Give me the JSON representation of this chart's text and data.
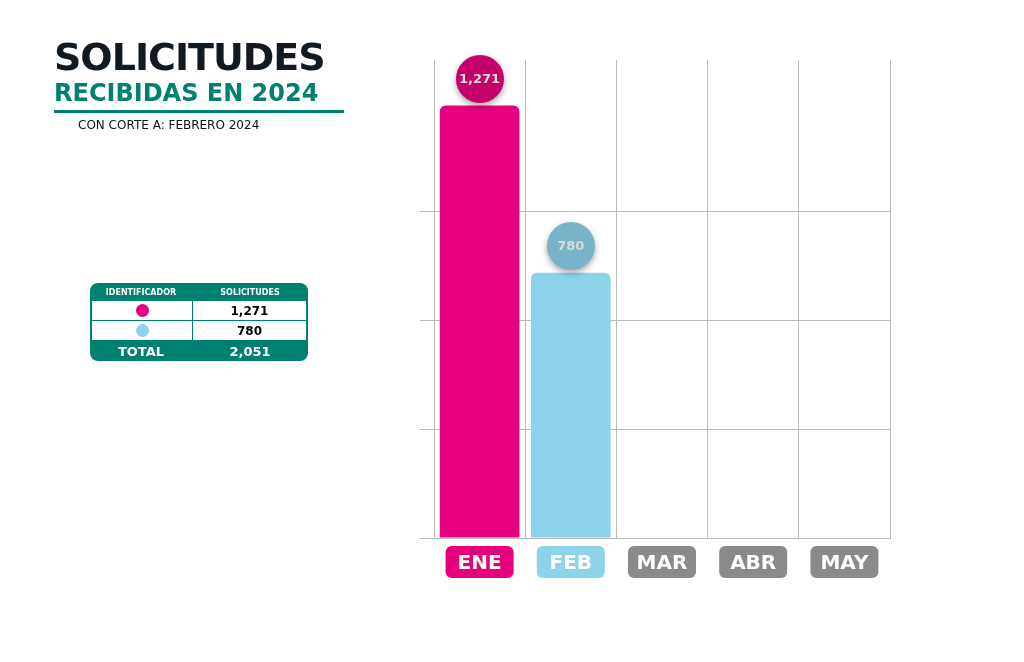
{
  "chart_data": {
    "type": "bar",
    "title": "SOLICITUDES",
    "subtitle": "RECIBIDAS EN 2024",
    "annotations": [
      "CON CORTE A: FEBRERO 2024",
      "IDENTIFICADOR",
      "SOLICITUDES",
      "TOTAL",
      "2,051"
    ],
    "categories": [
      "ENE",
      "FEB",
      "MAR",
      "ABR",
      "MAY"
    ],
    "values": [
      1271,
      780,
      null,
      null,
      null
    ],
    "value_labels": [
      "1,271",
      "780",
      null,
      null,
      null
    ],
    "colors": [
      "#e6007e",
      "#8dd3ea",
      "#8a8a8a",
      "#8a8a8a",
      "#8a8a8a"
    ],
    "ylim": [
      0,
      1405
    ],
    "yticks": [
      {
        "value": 0,
        "label": null
      },
      {
        "value": 320,
        "label": null
      },
      {
        "value": 640,
        "label": null
      },
      {
        "value": 960,
        "label": null
      }
    ],
    "grid": true,
    "tick_labels": "x"
  }
}
